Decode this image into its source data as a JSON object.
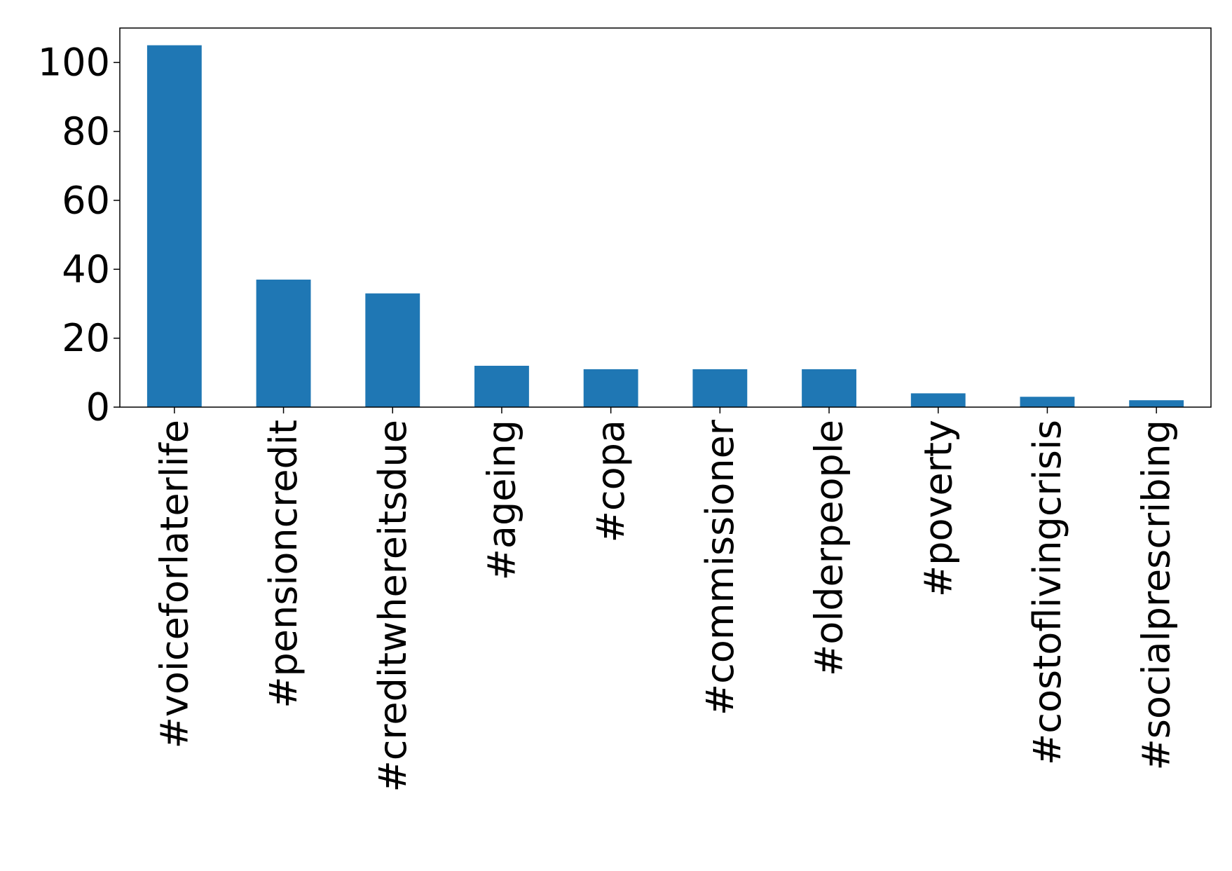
{
  "chart_data": {
    "type": "bar",
    "title": "",
    "xlabel": "",
    "ylabel": "",
    "categories": [
      "#voiceforlaterlife",
      "#pensioncredit",
      "#creditwhereitsdue",
      "#ageing",
      "#copa",
      "#commissioner",
      "#olderpeople",
      "#poverty",
      "#costoflivingcrisis",
      "#socialprescribing"
    ],
    "values": [
      105,
      37,
      33,
      12,
      11,
      11,
      11,
      4,
      3,
      2
    ],
    "ylim": [
      0,
      110
    ],
    "yticks": [
      0,
      20,
      40,
      60,
      80,
      100
    ],
    "bar_color": "#1f77b4",
    "grid": false,
    "legend": "none"
  }
}
